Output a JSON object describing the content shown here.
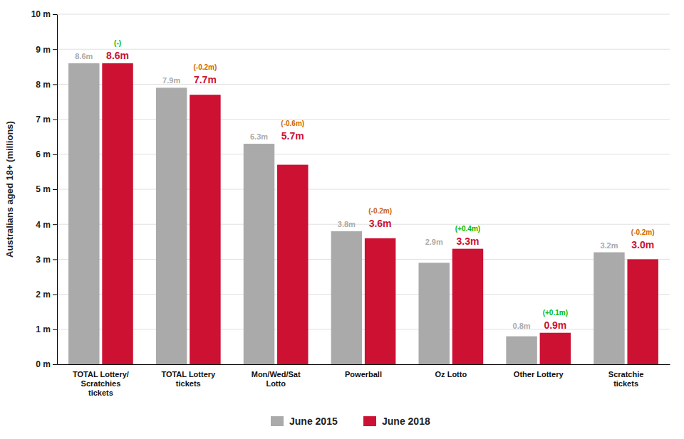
{
  "chart_data": {
    "type": "bar",
    "categories": [
      "TOTAL Lottery/\nScratchies\ntickets",
      "TOTAL Lottery\ntickets",
      "Mon/Wed/Sat\nLotto",
      "Powerball",
      "Oz Lotto",
      "Other Lottery",
      "Scratchie\ntickets"
    ],
    "series": [
      {
        "name": "June 2015",
        "color": "#aaaaaa",
        "values": [
          8.6,
          7.9,
          6.3,
          3.8,
          2.9,
          0.8,
          3.2
        ],
        "value_labels": [
          "8.6m",
          "7.9m",
          "6.3m",
          "3.8m",
          "2.9m",
          "0.8m",
          "3.2m"
        ]
      },
      {
        "name": "June 2018",
        "color": "#cc1133",
        "values": [
          8.6,
          7.7,
          5.7,
          3.6,
          3.3,
          0.9,
          3.0
        ],
        "value_labels": [
          "8.6m",
          "7.7m",
          "5.7m",
          "3.6m",
          "3.3m",
          "0.9m",
          "3.0m"
        ]
      }
    ],
    "annotations": [
      {
        "text": "(-)",
        "color": "#00bb00"
      },
      {
        "text": "(-0.2m)",
        "color": "#cc6600"
      },
      {
        "text": "(-0.6m)",
        "color": "#cc6600"
      },
      {
        "text": "(-0.2m)",
        "color": "#cc6600"
      },
      {
        "text": "(+0.4m)",
        "color": "#00bb00"
      },
      {
        "text": "(+0.1m)",
        "color": "#00bb00"
      },
      {
        "text": "(-0.2m)",
        "color": "#cc6600"
      }
    ],
    "y_label": "Australians aged 18+ (millions)",
    "ylim": [
      0,
      10
    ],
    "yticks": [
      {
        "value": 0,
        "label": "0 m"
      },
      {
        "value": 1,
        "label": "1 m"
      },
      {
        "value": 2,
        "label": "2 m"
      },
      {
        "value": 3,
        "label": "3 m"
      },
      {
        "value": 4,
        "label": "4 m"
      },
      {
        "value": 5,
        "label": "5 m"
      },
      {
        "value": 6,
        "label": "6 m"
      },
      {
        "value": 7,
        "label": "7 m"
      },
      {
        "value": 8,
        "label": "8 m"
      },
      {
        "value": 9,
        "label": "9 m"
      },
      {
        "value": 10,
        "label": "10 m"
      }
    ],
    "grid": true,
    "legend": "bottom",
    "data_labels": true
  }
}
